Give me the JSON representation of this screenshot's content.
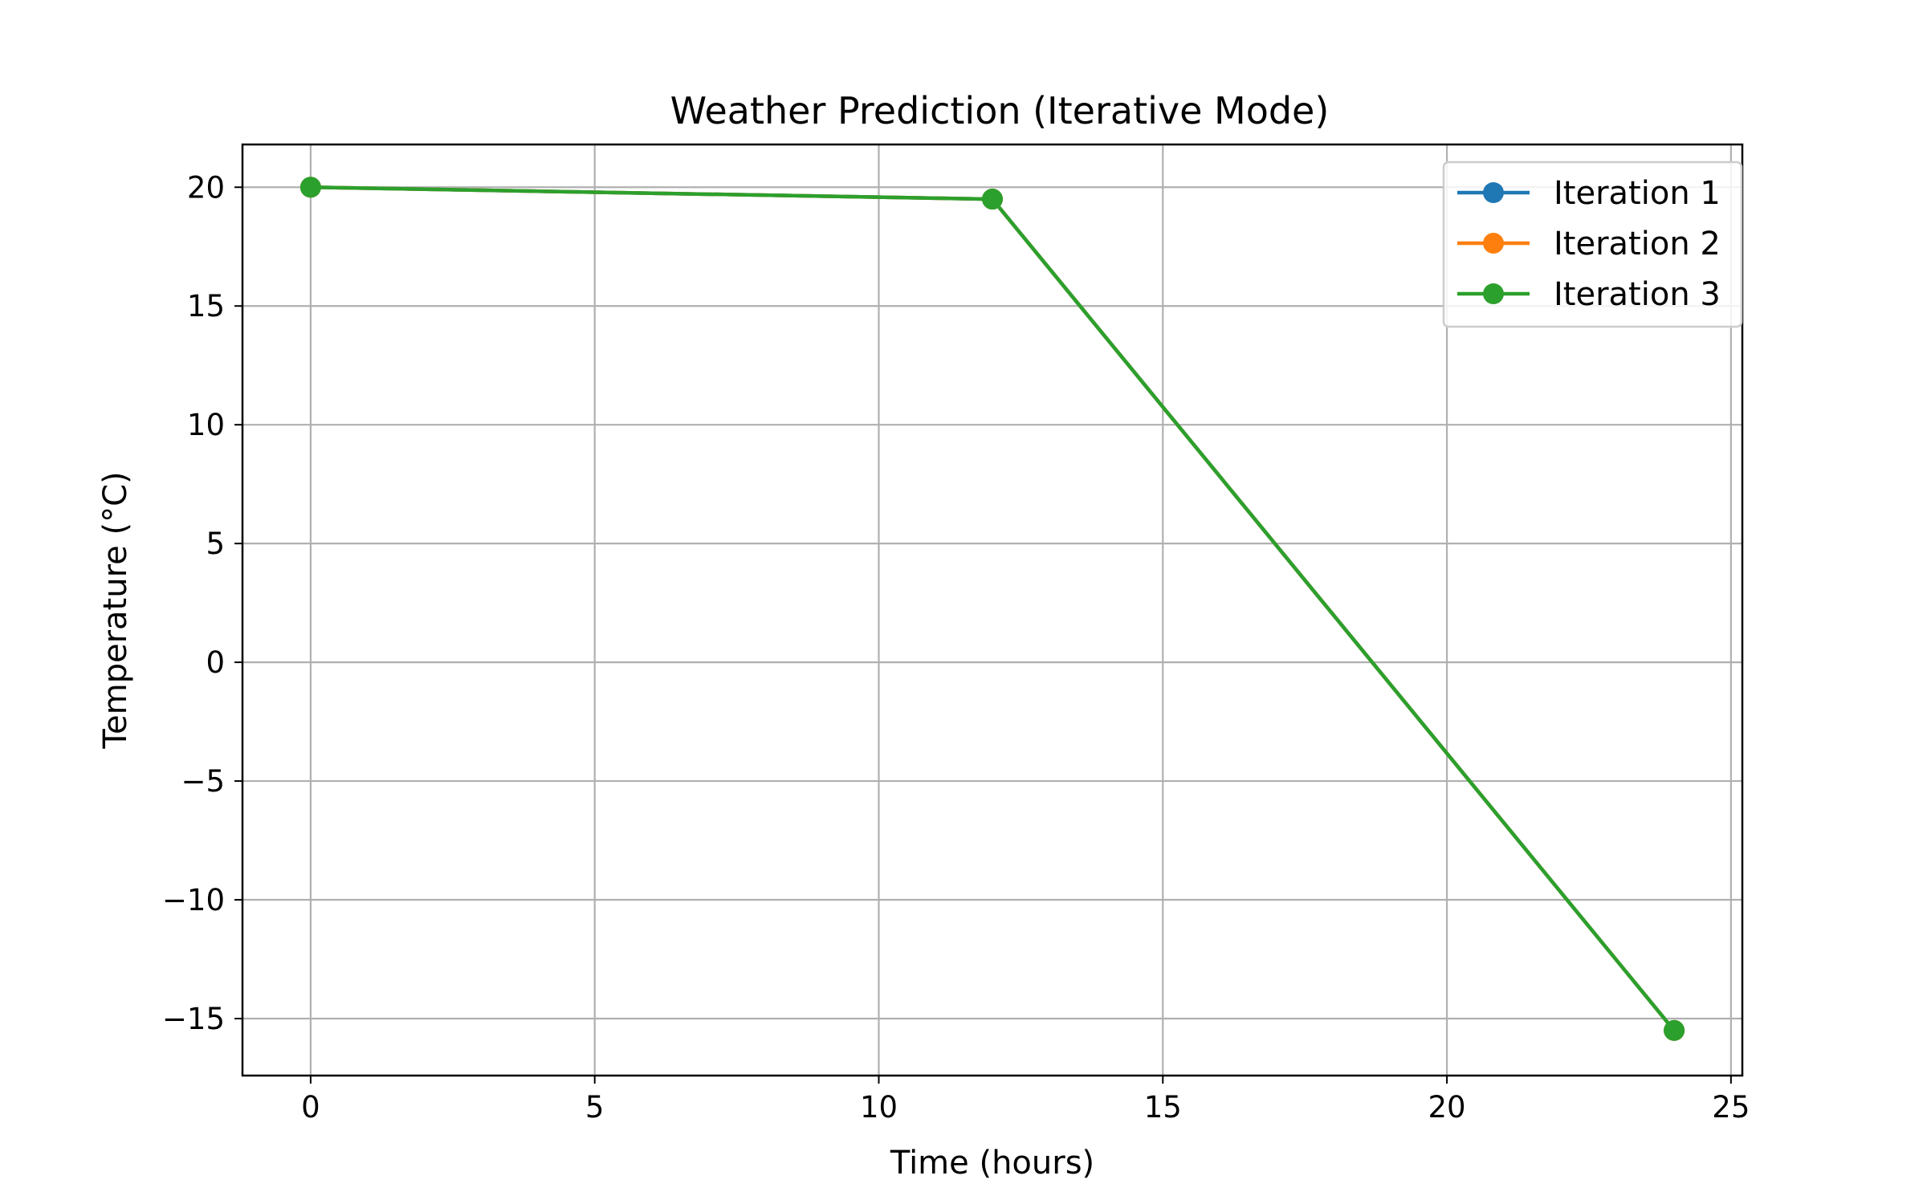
{
  "chart_data": {
    "type": "line",
    "title": "Weather Prediction (Iterative Mode)",
    "xlabel": "Time (hours)",
    "ylabel": "Temperature (°C)",
    "xlim": [
      -1.2,
      25.2
    ],
    "ylim": [
      -17.4,
      21.8
    ],
    "xticks": [
      0,
      5,
      10,
      15,
      20,
      25
    ],
    "xtick_labels": [
      "0",
      "5",
      "10",
      "15",
      "20",
      "25"
    ],
    "yticks": [
      -15,
      -10,
      -5,
      0,
      5,
      10,
      15,
      20
    ],
    "ytick_labels": [
      "−15",
      "−10",
      "−5",
      "0",
      "5",
      "10",
      "15",
      "20"
    ],
    "grid": true,
    "legend_position": "top-right",
    "series": [
      {
        "name": "Iteration 1",
        "color": "#1f77b4",
        "x": [
          0,
          12,
          24
        ],
        "y": [
          20.0,
          19.5,
          -15.5
        ]
      },
      {
        "name": "Iteration 2",
        "color": "#ff7f0e",
        "x": [
          0,
          12,
          24
        ],
        "y": [
          20.0,
          19.5,
          -15.5
        ]
      },
      {
        "name": "Iteration 3",
        "color": "#2ca02c",
        "x": [
          0,
          12,
          24
        ],
        "y": [
          20.0,
          19.5,
          -15.5
        ]
      }
    ]
  }
}
